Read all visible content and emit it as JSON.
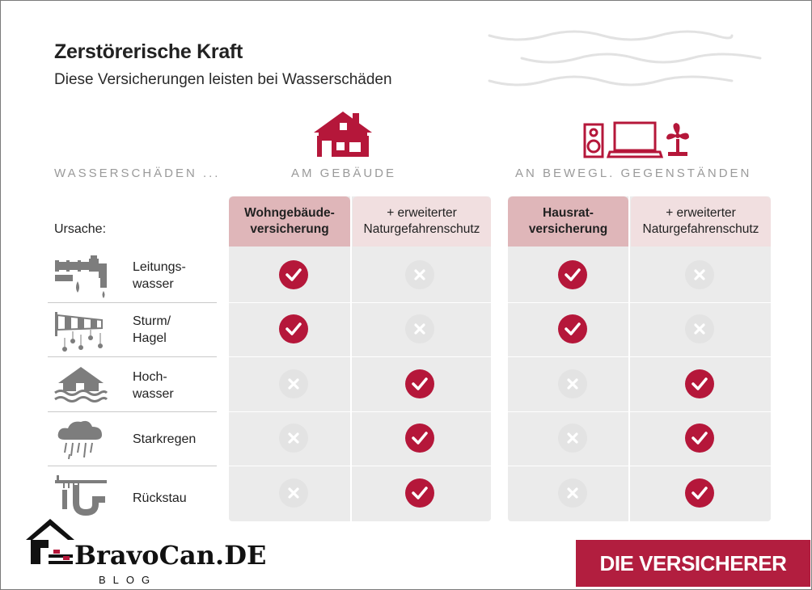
{
  "header": {
    "title": "Zerstörerische Kraft",
    "subtitle": "Diese Versicherungen leisten bei Wasserschäden"
  },
  "categories": {
    "left_label": "WASSERSCHÄDEN ...",
    "building_label": "AM GEBÄUDE",
    "movables_label": "AN BEWEGL. GEGENSTÄNDEN"
  },
  "columns": [
    {
      "label": "Wohngebäude-\nversicherung",
      "style": "primary"
    },
    {
      "label": "+ erweiterter\nNaturgefahrenschutz",
      "style": "secondary"
    },
    {
      "label": "Hausrat-\nversicherung",
      "style": "primary"
    },
    {
      "label": "+ erweiterter\nNaturgefahrenschutz",
      "style": "secondary"
    }
  ],
  "ursache_label": "Ursache:",
  "rows": [
    {
      "cause": "Leitungs-\nwasser",
      "icon": "pipe-leak-icon",
      "marks": [
        true,
        false,
        true,
        false
      ]
    },
    {
      "cause": "Sturm/\nHagel",
      "icon": "windsock-hail-icon",
      "marks": [
        true,
        false,
        true,
        false
      ]
    },
    {
      "cause": "Hoch-\nwasser",
      "icon": "flooded-house-icon",
      "marks": [
        false,
        true,
        false,
        true
      ]
    },
    {
      "cause": "Starkregen",
      "icon": "rain-cloud-icon",
      "marks": [
        false,
        true,
        false,
        true
      ]
    },
    {
      "cause": "Rückstau",
      "icon": "backflow-drain-icon",
      "marks": [
        false,
        true,
        false,
        true
      ]
    }
  ],
  "brand": "DIE VERSICHERER",
  "watermark": {
    "name": "BravoCan.DE",
    "sub": "BLOG"
  },
  "colors": {
    "accent": "#b5173a",
    "header_primary": "#dfb6b9",
    "header_secondary": "#f1dfe0",
    "grid_bg": "#ebebeb"
  }
}
